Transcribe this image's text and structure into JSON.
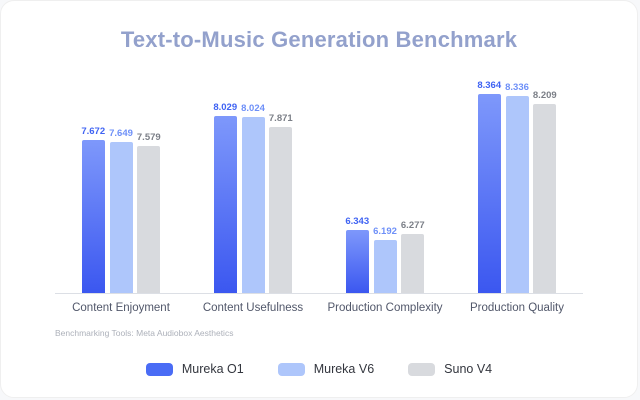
{
  "title": "Text-to-Music Generation Benchmark",
  "footnote": "Benchmarking Tools: Meta Audiobox Aesthetics",
  "chart_data": {
    "type": "bar",
    "title": "Text-to-Music Generation Benchmark",
    "categories": [
      "Content Enjoyment",
      "Content Usefulness",
      "Production Complexity",
      "Production Quality"
    ],
    "series": [
      {
        "name": "Mureka O1",
        "values": [
          7.672,
          8.029,
          6.343,
          8.364
        ],
        "color": "#4a6cf5",
        "gradient_top": "#7e98fb",
        "gradient_bottom": "#3b57f0",
        "label_color": "#3f63f3"
      },
      {
        "name": "Mureka V6",
        "values": [
          7.649,
          8.024,
          6.192,
          8.336
        ],
        "color": "#aec6fb",
        "label_color": "#6e90f8"
      },
      {
        "name": "Suno V4",
        "values": [
          7.579,
          7.871,
          6.277,
          8.209
        ],
        "color": "#d8dade",
        "label_color": "#7b7f87"
      }
    ],
    "ylim": [
      5.4,
      8.7
    ],
    "grid": false,
    "value_labels": true,
    "value_label_decimals": 3,
    "legend_position": "bottom",
    "xlabel": "",
    "ylabel": ""
  }
}
